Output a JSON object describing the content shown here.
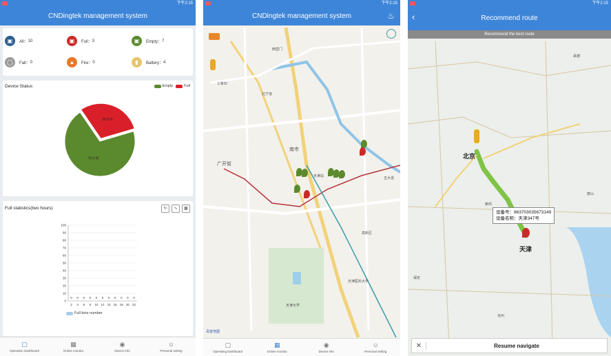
{
  "status": {
    "time": "下午2:15"
  },
  "dashboard": {
    "title": "CNDingtek management system",
    "categories": [
      {
        "label": "All：",
        "value": "10",
        "color": "#2c5f8f",
        "icon": "trash-icon"
      },
      {
        "label": "Full：",
        "value": "3",
        "color": "#cc2a2a",
        "icon": "full-bin-icon"
      },
      {
        "label": "Empty：",
        "value": "7",
        "color": "#5b8a2e",
        "icon": "empty-bin-icon"
      },
      {
        "label": "Fall：",
        "value": "0",
        "color": "#9a9a9a",
        "icon": "fall-icon"
      },
      {
        "label": "Fire：",
        "value": "0",
        "color": "#e8782a",
        "icon": "fire-icon"
      },
      {
        "label": "Battery：",
        "value": "4",
        "color": "#e8c46a",
        "icon": "battery-icon"
      }
    ],
    "device_status": {
      "title": "Device Status",
      "legend_empty": "Empty",
      "legend_full": "Full",
      "color_empty": "#5b8a2e",
      "color_full": "#d9202a"
    },
    "full_stats": {
      "title": "Full statistics(two hours)",
      "legend": "Full bins number"
    }
  },
  "chart_data": [
    {
      "type": "pie",
      "title": "Device Status",
      "categories": [
        "Empty",
        "Full"
      ],
      "values": [
        70.0,
        30.0
      ],
      "labels": [
        "70.0 %",
        "30.0 %"
      ],
      "legend": "top-right"
    },
    {
      "type": "bar",
      "title": "Full statistics(two hours)",
      "categories": [
        "2",
        "4",
        "6",
        "8",
        "10",
        "12",
        "14",
        "16",
        "18",
        "20",
        "22"
      ],
      "series": [
        {
          "name": "Full bins number",
          "values": [
            0,
            0,
            0,
            0,
            0,
            0,
            0,
            0,
            0,
            0,
            0
          ]
        }
      ],
      "ylim": [
        0,
        100
      ],
      "yticks": [
        "0",
        "10",
        "20",
        "30",
        "40",
        "50",
        "60",
        "70",
        "80",
        "90",
        "100"
      ],
      "grid": true,
      "legend": "bottom"
    }
  ],
  "tabs_small": [
    "Operation Dashboard",
    "Online monitor",
    "Device info",
    "Personal setting"
  ],
  "monitor": {
    "title": "CNDingtek management system",
    "map_labels": [
      "三条石",
      "北宁道",
      "南市",
      "广开街",
      "天津站",
      "五大道",
      "西营门",
      "高新区",
      "天津大学",
      "天津医科大学",
      "百度地图"
    ],
    "tabs": [
      "Operating Dashboard",
      "Online monitor",
      "Device info",
      "Personal setting"
    ]
  },
  "route": {
    "title": "Recommend route",
    "banner": "Recommend the best route",
    "popup_line1": "设备号：863703035673149",
    "popup_line2": "设备名称：天津347号",
    "city_beijing": "北京",
    "city_tianjin": "天津",
    "map_labels": [
      "承德",
      "唐山",
      "廊坊",
      "沧州",
      "保定"
    ],
    "resume": "Resume navigate"
  }
}
